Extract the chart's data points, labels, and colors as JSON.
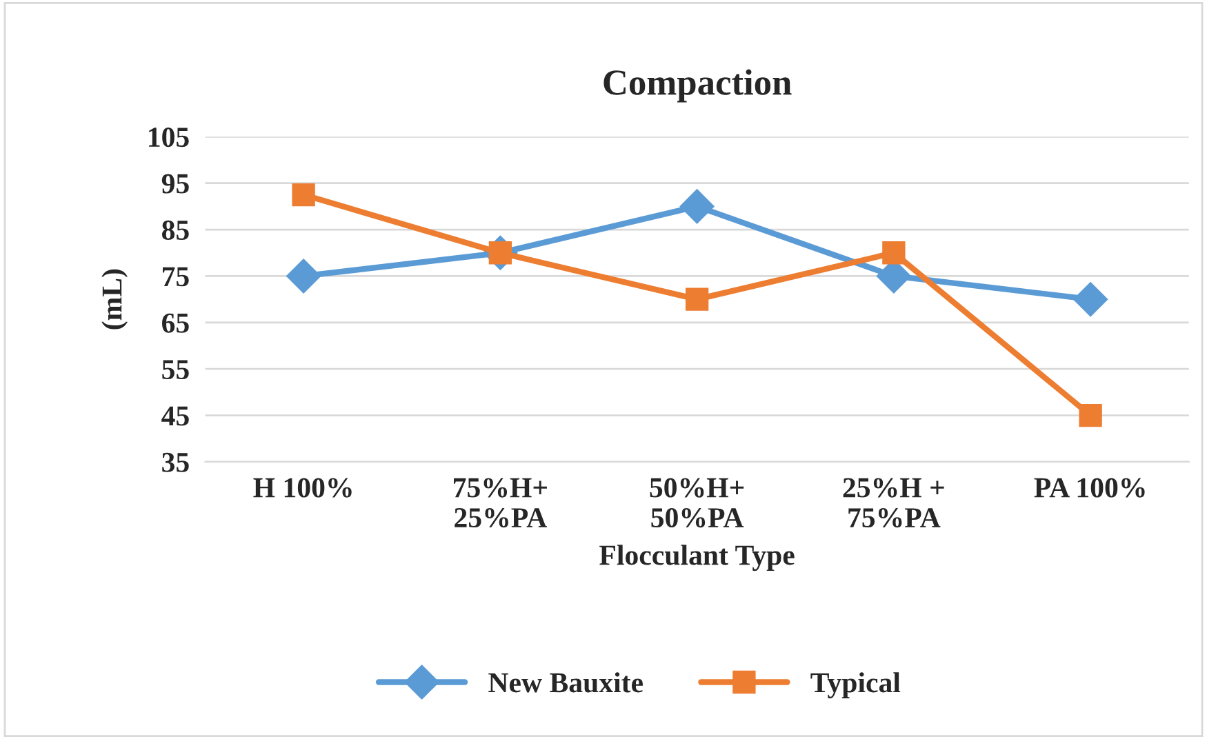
{
  "chart_data": {
    "type": "line",
    "title": "Compaction",
    "xlabel": "Flocculant Type",
    "ylabel": "(mL)",
    "categories": [
      "H 100%",
      "75%H+\n25%PA",
      "50%H+\n50%PA",
      "25%H +\n75%PA",
      "PA 100%"
    ],
    "series": [
      {
        "name": "New Bauxite",
        "color": "#5b9bd5",
        "values": [
          75,
          80,
          90,
          75,
          70
        ],
        "marker": "diamond"
      },
      {
        "name": "Typical",
        "color": "#ed7d31",
        "values": [
          92.5,
          80,
          70,
          80,
          45
        ],
        "marker": "square"
      }
    ],
    "ylim": [
      35,
      105
    ],
    "yticks": [
      35,
      45,
      55,
      65,
      75,
      85,
      95,
      105
    ],
    "grid": "y",
    "legend": "bottom",
    "line_style": "solid"
  }
}
